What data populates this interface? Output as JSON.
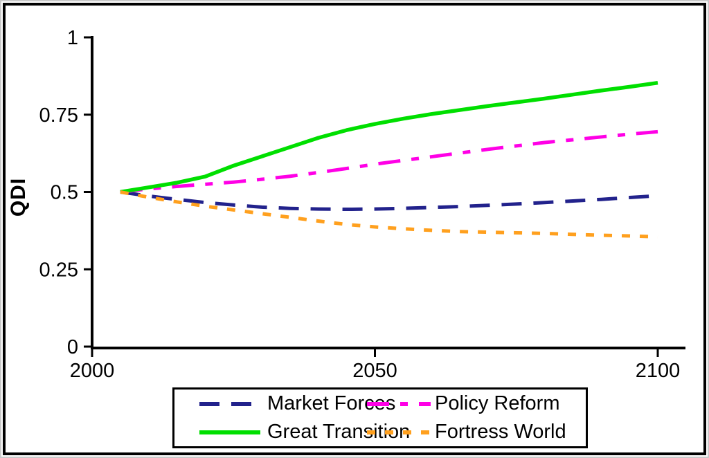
{
  "chart_data": {
    "type": "line",
    "title": "",
    "xlabel": "",
    "ylabel": "QDI",
    "xlim": [
      2000,
      2105
    ],
    "ylim": [
      0,
      1
    ],
    "grid": false,
    "legend_position": "bottom-center",
    "x_ticks": [
      2000,
      2050,
      2100
    ],
    "x_tick_labels": [
      "2000",
      "2050",
      "2100"
    ],
    "y_ticks": [
      0,
      0.25,
      0.5,
      0.75,
      1
    ],
    "y_tick_labels": [
      "0",
      "0.25",
      "0.5",
      "0.75",
      "1"
    ],
    "axis_color": "#000000",
    "x": [
      2005,
      2010,
      2015,
      2020,
      2025,
      2030,
      2035,
      2040,
      2045,
      2050,
      2055,
      2060,
      2065,
      2070,
      2075,
      2080,
      2085,
      2090,
      2095,
      2100
    ],
    "series": [
      {
        "name": "Market Forces",
        "color": "#22228C",
        "dash": "29 17",
        "values": [
          0.5,
          0.487,
          0.476,
          0.466,
          0.458,
          0.451,
          0.447,
          0.445,
          0.444,
          0.445,
          0.447,
          0.45,
          0.453,
          0.457,
          0.461,
          0.466,
          0.471,
          0.476,
          0.482,
          0.488
        ]
      },
      {
        "name": "Policy Reform",
        "color": "#FF00E6",
        "dash": "32 16 11 16",
        "values": [
          0.5,
          0.51,
          0.518,
          0.525,
          0.532,
          0.541,
          0.551,
          0.563,
          0.576,
          0.59,
          0.602,
          0.614,
          0.626,
          0.638,
          0.649,
          0.66,
          0.669,
          0.678,
          0.687,
          0.695
        ]
      },
      {
        "name": "Great Transition",
        "color": "#00DF00",
        "dash": "",
        "values": [
          0.5,
          0.515,
          0.53,
          0.55,
          0.585,
          0.615,
          0.645,
          0.675,
          0.7,
          0.72,
          0.737,
          0.752,
          0.765,
          0.778,
          0.79,
          0.802,
          0.815,
          0.828,
          0.84,
          0.853
        ]
      },
      {
        "name": "Fortress World",
        "color": "#FFA01E",
        "dash": "12 14",
        "values": [
          0.5,
          0.483,
          0.468,
          0.454,
          0.442,
          0.43,
          0.418,
          0.406,
          0.395,
          0.387,
          0.381,
          0.376,
          0.372,
          0.37,
          0.368,
          0.366,
          0.363,
          0.36,
          0.358,
          0.355
        ]
      }
    ],
    "legend_order_row_major": [
      "Market Forces",
      "Policy Reform",
      "Great Transition",
      "Fortress World"
    ]
  }
}
